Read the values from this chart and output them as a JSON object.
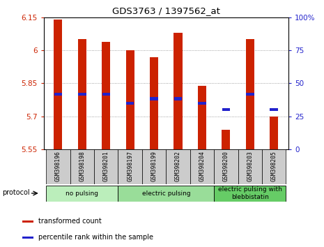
{
  "title": "GDS3763 / 1397562_at",
  "samples": [
    "GSM398196",
    "GSM398198",
    "GSM398201",
    "GSM398197",
    "GSM398199",
    "GSM398202",
    "GSM398204",
    "GSM398200",
    "GSM398203",
    "GSM398205"
  ],
  "red_values": [
    6.14,
    6.05,
    6.04,
    6.0,
    5.97,
    6.08,
    5.84,
    5.64,
    6.05,
    5.7
  ],
  "blue_values": [
    5.8,
    5.8,
    5.8,
    5.76,
    5.78,
    5.78,
    5.76,
    5.73,
    5.8,
    5.73
  ],
  "ymin": 5.55,
  "ymax": 6.15,
  "y2min": 0,
  "y2max": 100,
  "yticks": [
    5.55,
    5.7,
    5.85,
    6.0,
    6.15
  ],
  "ytick_labels": [
    "5.55",
    "5.7",
    "5.85",
    "6",
    "6.15"
  ],
  "y2ticks": [
    0,
    25,
    50,
    75,
    100
  ],
  "y2tick_labels": [
    "0",
    "25",
    "50",
    "75",
    "100%"
  ],
  "groups": [
    {
      "label": "no pulsing",
      "start": 0,
      "end": 3,
      "color": "#bbeebb"
    },
    {
      "label": "electric pulsing",
      "start": 3,
      "end": 7,
      "color": "#99dd99"
    },
    {
      "label": "electric pulsing with\nblebbistatin",
      "start": 7,
      "end": 10,
      "color": "#66cc66"
    }
  ],
  "bar_color": "#cc2200",
  "dot_color": "#2222cc",
  "bar_width": 0.35,
  "grid_color": "#888888",
  "protocol_label": "protocol",
  "legend_items": [
    {
      "color": "#cc2200",
      "label": "transformed count"
    },
    {
      "color": "#2222cc",
      "label": "percentile rank within the sample"
    }
  ]
}
